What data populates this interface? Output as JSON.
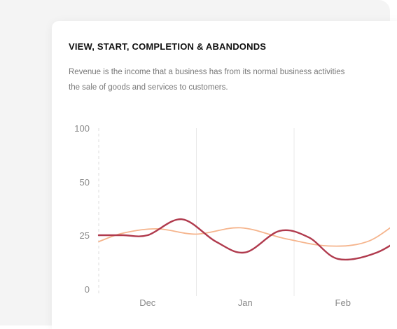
{
  "card": {
    "title": "VIEW, START, COMPLETION & ABANDONDS",
    "description_line1": "Revenue is the income that a business has from its normal business activities",
    "description_line2": "the sale of goods and services to customers."
  },
  "chart_data": {
    "type": "line",
    "title": "",
    "xlabel": "",
    "ylabel": "",
    "y_ticks": [
      "100",
      "50",
      "25",
      "0"
    ],
    "x_categories": [
      "Dec",
      "Jan",
      "Feb"
    ],
    "grid": "vertical",
    "series": [
      {
        "color": "#b03a4d",
        "x": [
          0.0,
          0.25,
          0.5,
          0.85,
          1.2,
          1.5,
          1.85,
          2.15,
          2.45,
          2.85,
          3.2
        ],
        "y": [
          25,
          25,
          25,
          32.5,
          22,
          17,
          27,
          24,
          14,
          17,
          27
        ]
      },
      {
        "color": "#f5b48c",
        "x": [
          0.0,
          0.25,
          0.6,
          1.0,
          1.45,
          1.9,
          2.35,
          2.75,
          3.1,
          3.2
        ],
        "y": [
          22,
          26,
          28,
          25.5,
          28.5,
          23.5,
          20,
          22,
          32,
          31.5
        ]
      }
    ]
  }
}
